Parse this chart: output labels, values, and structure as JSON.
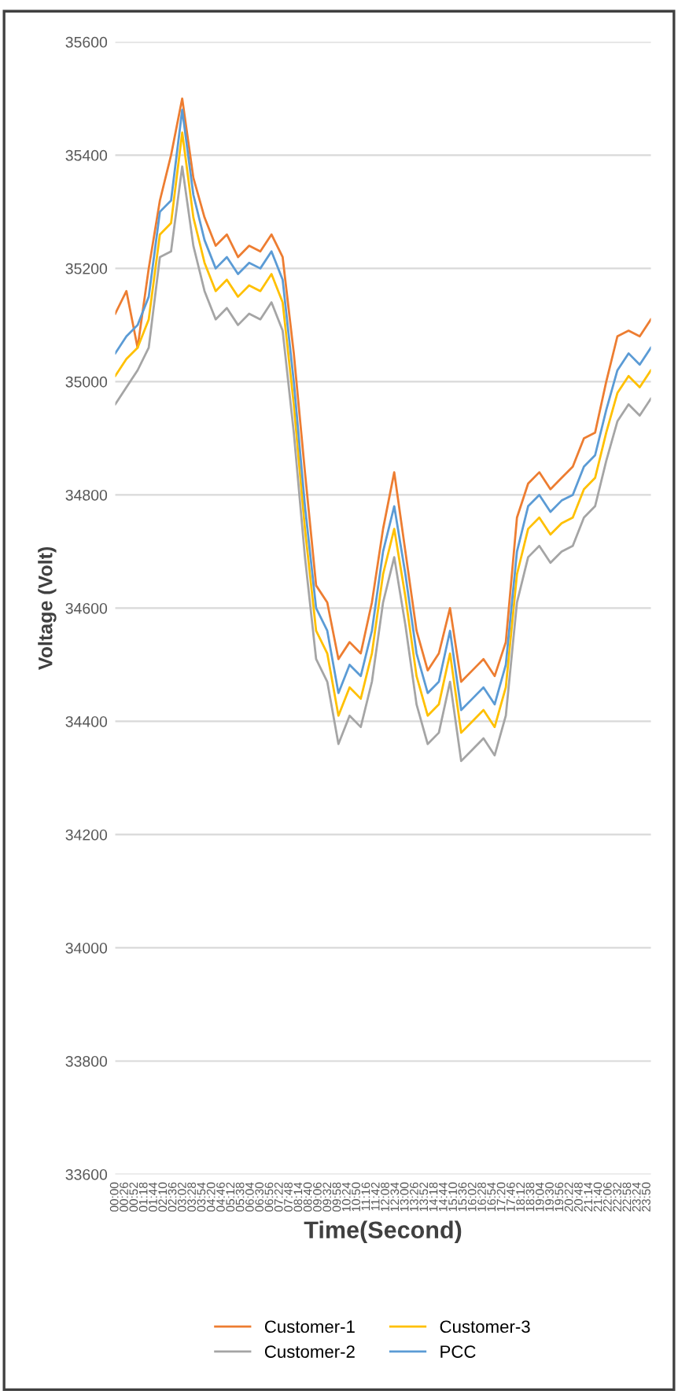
{
  "chart_data": {
    "type": "line",
    "xlabel": "Time(Second)",
    "ylabel": "Voltage (Volt)",
    "x": [
      0,
      0.5,
      1,
      1.5,
      2,
      2.5,
      3,
      3.5,
      4,
      4.5,
      5,
      5.5,
      6,
      6.5,
      7,
      7.5,
      8,
      8.5,
      9,
      9.5,
      10,
      10.5,
      11,
      11.5,
      12,
      12.5,
      13,
      13.5,
      14,
      14.5,
      15,
      15.5,
      16,
      16.5,
      17,
      17.5,
      18,
      18.5,
      19,
      19.5,
      20,
      20.5,
      21,
      21.5,
      22,
      22.5,
      23,
      23.5,
      24
    ],
    "series": [
      {
        "name": "Customer-1",
        "color": "#ed7d31",
        "values": [
          35120,
          35160,
          35060,
          35200,
          35320,
          35400,
          35500,
          35360,
          35290,
          35240,
          35260,
          35220,
          35240,
          35230,
          35260,
          35220,
          35050,
          34840,
          34640,
          34610,
          34510,
          34540,
          34520,
          34610,
          34740,
          34840,
          34700,
          34560,
          34490,
          34520,
          34600,
          34470,
          34490,
          34510,
          34480,
          34540,
          34760,
          34820,
          34840,
          34810,
          34830,
          34850,
          34900,
          34910,
          35000,
          35080,
          35090,
          35080,
          35110
        ]
      },
      {
        "name": "Customer-2",
        "color": "#a5a5a5",
        "values": [
          34960,
          34990,
          35020,
          35060,
          35220,
          35230,
          35380,
          35240,
          35160,
          35110,
          35130,
          35100,
          35120,
          35110,
          35140,
          35090,
          34910,
          34690,
          34510,
          34470,
          34360,
          34410,
          34390,
          34470,
          34610,
          34690,
          34570,
          34430,
          34360,
          34380,
          34470,
          34330,
          34350,
          34370,
          34340,
          34410,
          34610,
          34690,
          34710,
          34680,
          34700,
          34710,
          34760,
          34780,
          34860,
          34930,
          34960,
          34940,
          34970
        ]
      },
      {
        "name": "Customer-3",
        "color": "#ffc000",
        "values": [
          35010,
          35040,
          35060,
          35110,
          35260,
          35280,
          35440,
          35290,
          35210,
          35160,
          35180,
          35150,
          35170,
          35160,
          35190,
          35140,
          34960,
          34740,
          34560,
          34520,
          34410,
          34460,
          34440,
          34520,
          34660,
          34740,
          34620,
          34480,
          34410,
          34430,
          34520,
          34380,
          34400,
          34420,
          34390,
          34460,
          34660,
          34740,
          34760,
          34730,
          34750,
          34760,
          34810,
          34830,
          34910,
          34980,
          35010,
          34990,
          35020
        ]
      },
      {
        "name": "PCC",
        "color": "#5b9bd5",
        "values": [
          35050,
          35080,
          35100,
          35150,
          35300,
          35320,
          35480,
          35330,
          35250,
          35200,
          35220,
          35190,
          35210,
          35200,
          35230,
          35180,
          35000,
          34780,
          34600,
          34560,
          34450,
          34500,
          34480,
          34560,
          34700,
          34780,
          34660,
          34520,
          34450,
          34470,
          34560,
          34420,
          34440,
          34460,
          34430,
          34500,
          34700,
          34780,
          34800,
          34770,
          34790,
          34800,
          34850,
          34870,
          34950,
          35020,
          35050,
          35030,
          35060
        ]
      }
    ],
    "xlim": [
      0,
      24
    ],
    "xticks": [
      {
        "value": 0,
        "label": "00:00"
      },
      {
        "value": 0.4333,
        "label": "00:26"
      },
      {
        "value": 0.8667,
        "label": "00:52"
      },
      {
        "value": 1.3,
        "label": "01:18"
      },
      {
        "value": 1.7333,
        "label": "01:44"
      },
      {
        "value": 2.1667,
        "label": "02:10"
      },
      {
        "value": 2.6,
        "label": "02:36"
      },
      {
        "value": 3.0333,
        "label": "03:02"
      },
      {
        "value": 3.4667,
        "label": "03:28"
      },
      {
        "value": 3.9,
        "label": "03:54"
      },
      {
        "value": 4.3333,
        "label": "04:20"
      },
      {
        "value": 4.7667,
        "label": "04:46"
      },
      {
        "value": 5.2,
        "label": "05:12"
      },
      {
        "value": 5.6333,
        "label": "05:38"
      },
      {
        "value": 6.0667,
        "label": "06:04"
      },
      {
        "value": 6.5,
        "label": "06:30"
      },
      {
        "value": 6.9333,
        "label": "06:56"
      },
      {
        "value": 7.3667,
        "label": "07:22"
      },
      {
        "value": 7.8,
        "label": "07:48"
      },
      {
        "value": 8.2333,
        "label": "08:14"
      },
      {
        "value": 8.6667,
        "label": "08:40"
      },
      {
        "value": 9.1,
        "label": "09:06"
      },
      {
        "value": 9.5333,
        "label": "09:32"
      },
      {
        "value": 9.9667,
        "label": "09:58"
      },
      {
        "value": 10.4,
        "label": "10:24"
      },
      {
        "value": 10.8333,
        "label": "10:50"
      },
      {
        "value": 11.2667,
        "label": "11:16"
      },
      {
        "value": 11.7,
        "label": "11:42"
      },
      {
        "value": 12.1333,
        "label": "12:08"
      },
      {
        "value": 12.5667,
        "label": "12:34"
      },
      {
        "value": 13.0,
        "label": "13:00"
      },
      {
        "value": 13.4333,
        "label": "13:26"
      },
      {
        "value": 13.8667,
        "label": "13:52"
      },
      {
        "value": 14.3,
        "label": "14:18"
      },
      {
        "value": 14.7333,
        "label": "14:44"
      },
      {
        "value": 15.1667,
        "label": "15:10"
      },
      {
        "value": 15.6,
        "label": "15:36"
      },
      {
        "value": 16.0333,
        "label": "16:02"
      },
      {
        "value": 16.4667,
        "label": "16:28"
      },
      {
        "value": 16.9,
        "label": "16:54"
      },
      {
        "value": 17.3333,
        "label": "17:20"
      },
      {
        "value": 17.7667,
        "label": "17:46"
      },
      {
        "value": 18.2,
        "label": "18:12"
      },
      {
        "value": 18.6333,
        "label": "18:38"
      },
      {
        "value": 19.0667,
        "label": "19:04"
      },
      {
        "value": 19.5,
        "label": "19:30"
      },
      {
        "value": 19.9333,
        "label": "19:56"
      },
      {
        "value": 20.3667,
        "label": "20:22"
      },
      {
        "value": 20.8,
        "label": "20:48"
      },
      {
        "value": 21.2333,
        "label": "21:14"
      },
      {
        "value": 21.6667,
        "label": "21:40"
      },
      {
        "value": 22.1,
        "label": "22:06"
      },
      {
        "value": 22.5333,
        "label": "22:32"
      },
      {
        "value": 22.9667,
        "label": "22:58"
      },
      {
        "value": 23.4,
        "label": "23:24"
      },
      {
        "value": 23.8333,
        "label": "23:50"
      }
    ],
    "ylim": [
      33600,
      35600
    ],
    "yticks": [
      33600,
      33800,
      34000,
      34200,
      34400,
      34600,
      34800,
      35000,
      35200,
      35400,
      35600
    ],
    "grid": "y",
    "legend": "right",
    "marker": "none",
    "line_style": "solid"
  }
}
